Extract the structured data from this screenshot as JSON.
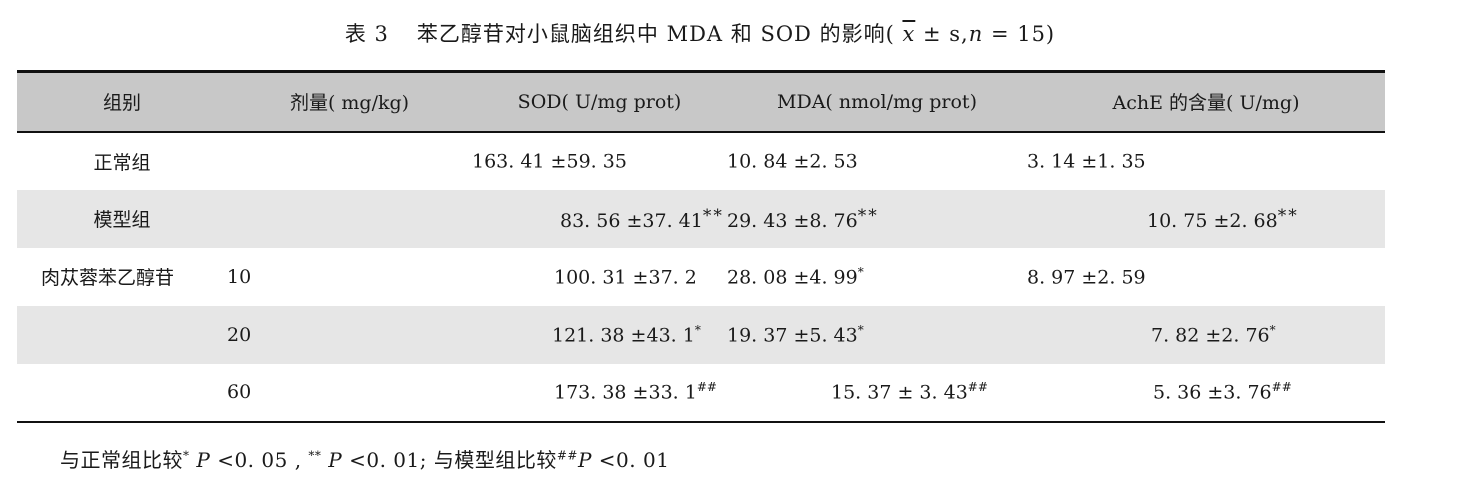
{
  "caption": {
    "number": "表 3",
    "title": "苯乙醇苷对小鼠脑组织中 MDA 和 SOD 的影响(",
    "stat_mean": "x",
    "stat_rest": "± s,",
    "stat_n": "n",
    "stat_n_value": "= 15)"
  },
  "table": {
    "headers": {
      "group": "组别",
      "dose": "剂量( mg/kg)",
      "sod": "SOD( U/mg prot)",
      "mda": "MDA( nmol/mg prot)",
      "ache": "AchE 的含量( U/mg)"
    },
    "rows": [
      {
        "group": "正常组",
        "dose": "",
        "sod": "163. 41 ±59. 35",
        "sod_mark": "",
        "mda": "10. 84 ±2. 53",
        "mda_mark": "",
        "ache": "3. 14 ±1. 35",
        "ache_mark": ""
      },
      {
        "group": "模型组",
        "dose": "",
        "sod": "83. 56 ±37. 41",
        "sod_mark": "**",
        "mda": "29. 43 ±8. 76",
        "mda_mark": "**",
        "ache": "10. 75 ±2. 68",
        "ache_mark": "**"
      },
      {
        "group": "肉苁蓉苯乙醇苷",
        "dose": "10",
        "sod": "100. 31 ±37. 2",
        "sod_mark": "",
        "mda": "28. 08 ±4. 99",
        "mda_mark": "*",
        "ache": "8. 97 ±2. 59",
        "ache_mark": ""
      },
      {
        "group": "",
        "dose": "20",
        "sod": "121. 38 ±43. 1",
        "sod_mark": "*",
        "mda": "19. 37 ±5. 43",
        "mda_mark": "*",
        "ache": "7. 82 ±2. 76",
        "ache_mark": "*"
      },
      {
        "group": "",
        "dose": "60",
        "sod": "173. 38 ±33. 1",
        "sod_mark": "##",
        "mda": "15. 37 ± 3. 43",
        "mda_mark": "##",
        "ache": "5. 36 ±3. 76",
        "ache_mark": "##"
      }
    ]
  },
  "footnote": {
    "part1": "与正常组比较",
    "mark1": "*",
    "p1": "P",
    "v1": "<0. 05 ,",
    "mark2": "**",
    "p2": "P",
    "v2": "<0. 01; 与模型组比较",
    "mark3": "##",
    "p3": "P",
    "v3": "<0. 01"
  }
}
